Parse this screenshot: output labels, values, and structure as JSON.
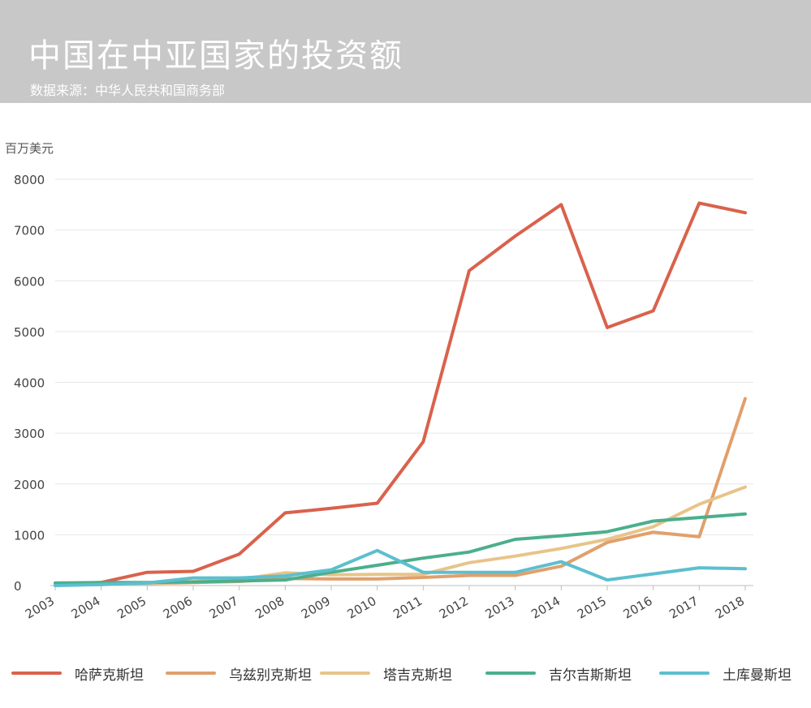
{
  "title": "中国在中亚国家的投资额",
  "subtitle": "数据来源：中华人民共和国商务部",
  "unit_label": "百万美元",
  "chart_data": {
    "type": "line",
    "title": "中国在中亚国家的投资额",
    "subtitle": "数据来源：中华人民共和国商务部",
    "xlabel": "",
    "ylabel": "百万美元",
    "ylim": [
      0,
      8000
    ],
    "yticks": [
      0,
      1000,
      2000,
      3000,
      4000,
      5000,
      6000,
      7000,
      8000
    ],
    "grid": true,
    "legend_position": "bottom",
    "categories": [
      "2003",
      "2004",
      "2005",
      "2006",
      "2007",
      "2008",
      "2009",
      "2010",
      "2011",
      "2012",
      "2013",
      "2014",
      "2015",
      "2016",
      "2017",
      "2018"
    ],
    "series": [
      {
        "name": "哈萨克斯坦",
        "color": "#d9624c",
        "values": [
          30,
          60,
          260,
          280,
          620,
          1430,
          1520,
          1620,
          2830,
          6200,
          6880,
          7500,
          5080,
          5410,
          7530,
          7340
        ]
      },
      {
        "name": "乌兹别克斯坦",
        "color": "#e0a06c",
        "values": [
          10,
          20,
          40,
          60,
          80,
          140,
          130,
          130,
          160,
          200,
          200,
          380,
          850,
          1050,
          960,
          3680
        ]
      },
      {
        "name": "塔吉克斯坦",
        "color": "#e8c48a",
        "values": [
          10,
          20,
          40,
          80,
          120,
          250,
          210,
          220,
          220,
          450,
          580,
          730,
          910,
          1160,
          1600,
          1940
        ]
      },
      {
        "name": "吉尔吉斯斯坦",
        "color": "#4caf8c",
        "values": [
          50,
          60,
          60,
          70,
          90,
          110,
          260,
          400,
          540,
          660,
          910,
          980,
          1060,
          1270,
          1340,
          1410
        ]
      },
      {
        "name": "土库曼斯坦",
        "color": "#5cbfcf",
        "values": [
          0,
          20,
          50,
          150,
          150,
          190,
          310,
          690,
          260,
          260,
          260,
          470,
          110,
          230,
          350,
          330
        ]
      }
    ]
  }
}
